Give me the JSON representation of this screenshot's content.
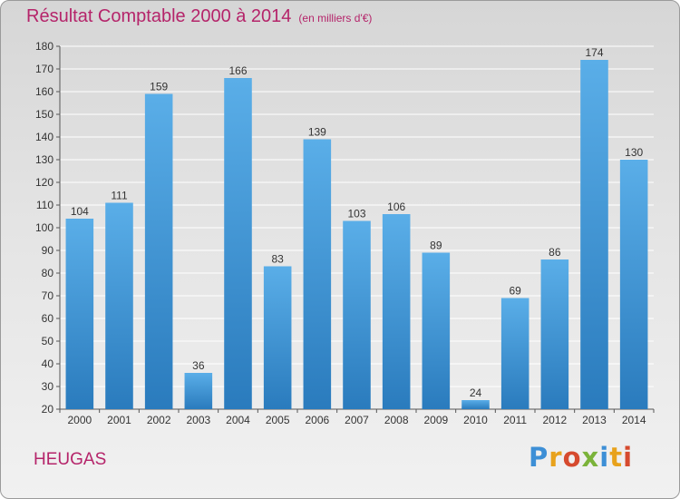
{
  "header": {
    "title": "Résultat Comptable 2000 à 2014",
    "subtitle": "(en milliers d'€)"
  },
  "footer": {
    "place": "HEUGAS",
    "logo_letters": [
      "P",
      "r",
      "o",
      "x",
      "i",
      "t",
      "i"
    ]
  },
  "colors": {
    "title": "#b5246a",
    "bar_light": "#5aaee8",
    "bar_dark": "#2a7bbd"
  },
  "chart_data": {
    "type": "bar",
    "title": "Résultat Comptable 2000 à 2014",
    "categories": [
      "2000",
      "2001",
      "2002",
      "2003",
      "2004",
      "2005",
      "2006",
      "2007",
      "2008",
      "2009",
      "2010",
      "2011",
      "2012",
      "2013",
      "2014"
    ],
    "values": [
      104,
      111,
      159,
      36,
      166,
      83,
      139,
      103,
      106,
      89,
      24,
      69,
      86,
      174,
      130
    ],
    "ylim": [
      20,
      180
    ],
    "yticks": [
      20,
      30,
      40,
      50,
      60,
      70,
      80,
      90,
      100,
      110,
      120,
      130,
      140,
      150,
      160,
      170,
      180
    ],
    "xlabel": "",
    "ylabel": "",
    "grid": true,
    "legend": "none"
  }
}
